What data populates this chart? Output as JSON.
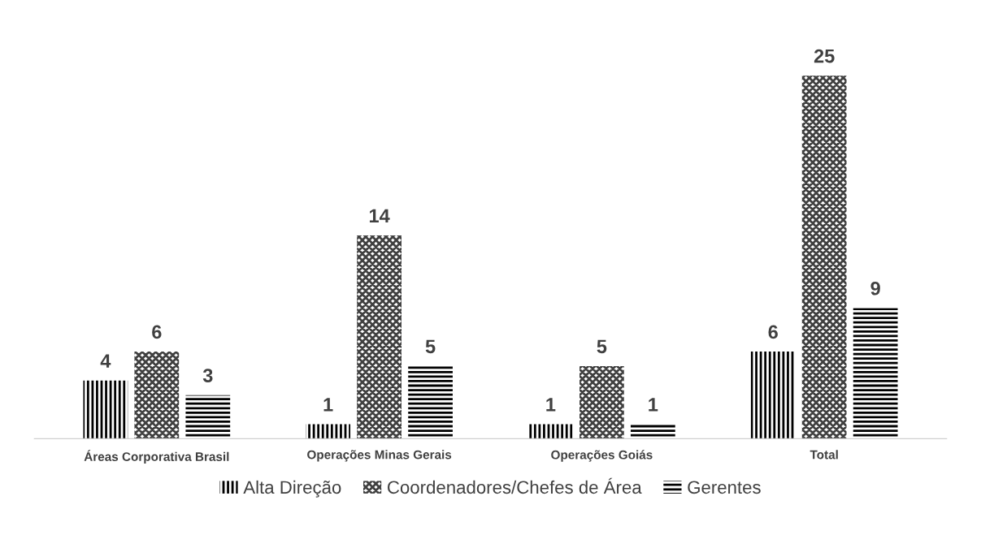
{
  "chart_data": {
    "type": "bar",
    "categories": [
      "Áreas Corporativa Brasil",
      "Operações Minas Gerais",
      "Operações Goiás",
      "Total"
    ],
    "series": [
      {
        "name": "Alta Direção",
        "color": "#000000",
        "values": [
          4,
          1,
          1,
          6
        ]
      },
      {
        "name": "Coordenadores/Chefes de Área",
        "color": "#404040",
        "values": [
          6,
          14,
          5,
          25
        ]
      },
      {
        "name": "Gerentes",
        "color": "#000000",
        "values": [
          3,
          5,
          1,
          9
        ]
      }
    ],
    "data_labels": true,
    "legend": "bottom",
    "grid": false
  }
}
